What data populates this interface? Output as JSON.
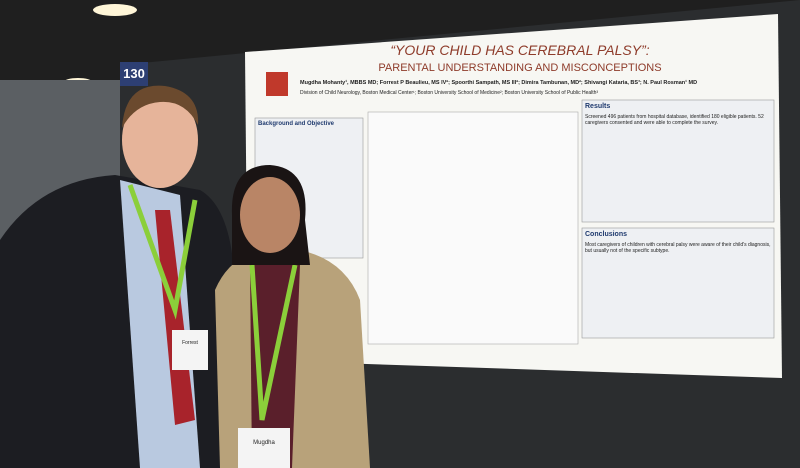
{
  "booth_number": "130",
  "poster": {
    "title": "“YOUR CHILD HAS CEREBRAL PALSY”:",
    "subtitle": "PARENTAL UNDERSTANDING AND MISCONCEPTIONS",
    "authors": "Mugdha Mohanty¹, MBBS MD; Forrest P Beaulieu, MS IV²; Spoorthi Sampath, MS III²; Dimira Tambunan, MD²; Shivangi Kataria, BS³; N. Paul Rosman¹ MD",
    "affiliations": "Division of Child Neurology, Boston Medical Center¹; Boston University School of Medicine²; Boston University School of Public Health³",
    "sections": [
      {
        "heading": "Background and Objective"
      },
      {
        "heading": "Results",
        "text": "Screened 496 patients from hospital database, identified 180 eligible patients. 52 caregivers consented and were able to complete the survey."
      },
      {
        "heading": "Conclusions",
        "text": "Most caregivers of children with cerebral palsy were aware of their child's diagnosis, but usually not of the specific subtype."
      }
    ]
  },
  "badges": [
    "Forrest",
    "Mugdha"
  ]
}
